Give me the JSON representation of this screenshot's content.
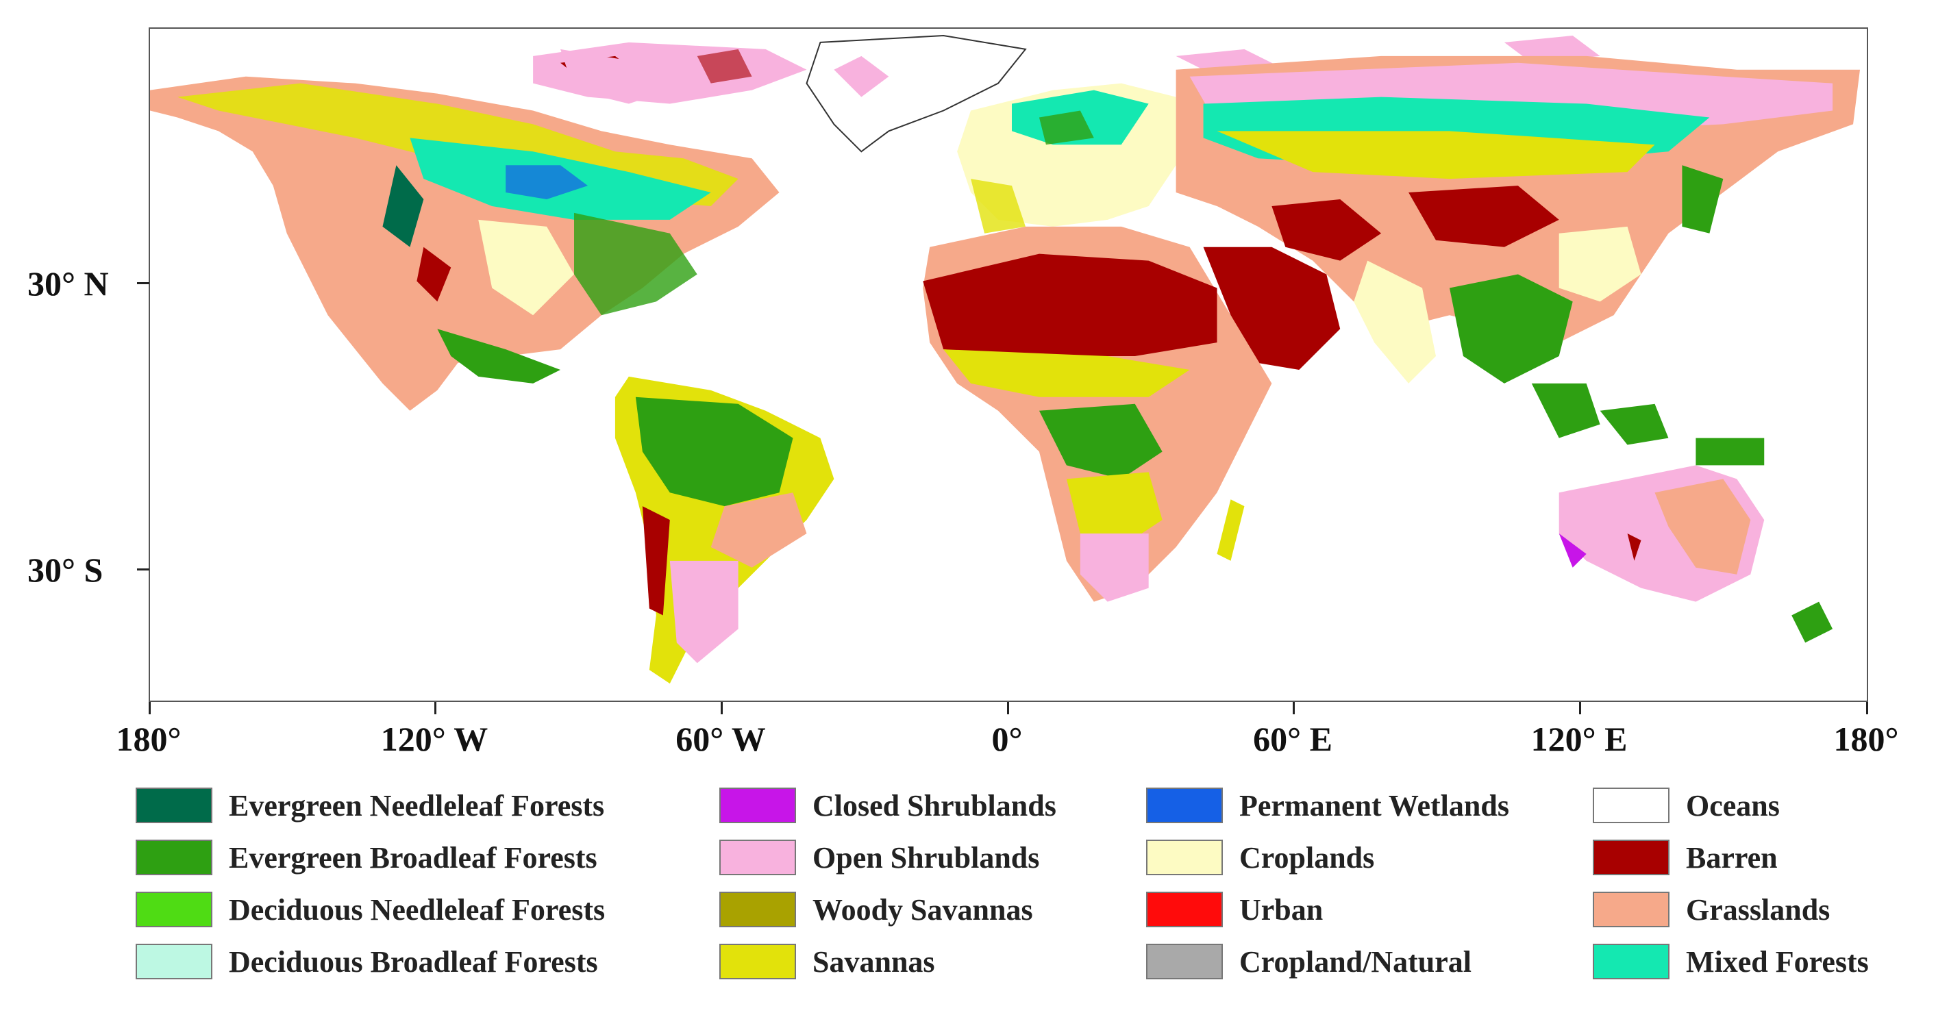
{
  "map": {
    "latitude_labels": [
      "30° N",
      "30° S"
    ],
    "longitude_labels": [
      "180°",
      "120° W",
      "60° W",
      "0°",
      "60° E",
      "120° E",
      "180°"
    ]
  },
  "legend": {
    "columns": [
      [
        {
          "label": "Evergreen Needleleaf Forests",
          "color": "#006b4a"
        },
        {
          "label": "Evergreen Broadleaf Forests",
          "color": "#2ea012"
        },
        {
          "label": "Deciduous Needleleaf Forests",
          "color": "#4fdc14"
        },
        {
          "label": "Deciduous Broadleaf Forests",
          "color": "#bdf8e3"
        }
      ],
      [
        {
          "label": "Closed Shrublands",
          "color": "#c715e8"
        },
        {
          "label": "Open Shrublands",
          "color": "#f8b2de"
        },
        {
          "label": "Woody Savannas",
          "color": "#a9a200"
        },
        {
          "label": "Savannas",
          "color": "#e2e20b"
        }
      ],
      [
        {
          "label": "Permanent Wetlands",
          "color": "#1560e6"
        },
        {
          "label": "Croplands",
          "color": "#fdfbc3"
        },
        {
          "label": "Urban",
          "color": "#ff0b0b"
        },
        {
          "label": "Cropland/Natural",
          "color": "#a9a9a9"
        }
      ],
      [
        {
          "label": "Oceans",
          "color": "#ffffff"
        },
        {
          "label": "Barren",
          "color": "#a80000"
        },
        {
          "label": "Grasslands",
          "color": "#f6a98a"
        },
        {
          "label": "Mixed Forests",
          "color": "#14e8b1"
        }
      ]
    ]
  }
}
